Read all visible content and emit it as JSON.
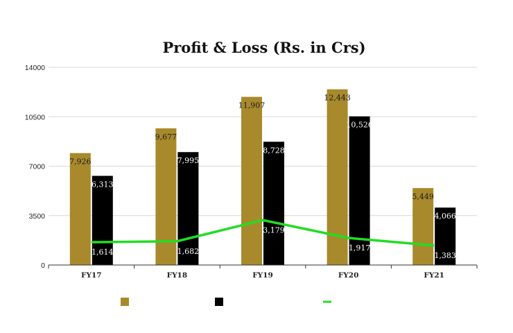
{
  "chart_data": {
    "type": "bar",
    "title": "Profit & Loss (Rs. in Crs)",
    "xlabel": "",
    "ylabel": "",
    "categories": [
      "FY17",
      "FY18",
      "FY19",
      "FY20",
      "FY21"
    ],
    "ylim": [
      0,
      14000
    ],
    "yticks": [
      "0",
      "3500",
      "7000",
      "10500",
      "14000"
    ],
    "ytick_values": [
      0,
      3500,
      7000,
      10500,
      14000
    ],
    "grid": true,
    "legend_position": "bottom",
    "series": [
      {
        "type": "bar",
        "color": "#a88a2c",
        "label_color": "#1a1a1a",
        "values": [
          7926,
          9677,
          11907,
          12443,
          5449
        ],
        "labels": [
          "7,926",
          "9,677",
          "11,907",
          "12,443",
          "5,449"
        ]
      },
      {
        "type": "bar",
        "color": "#000000",
        "label_color": "#ffffff",
        "values": [
          6313,
          7995,
          8728,
          10526,
          4066
        ],
        "labels": [
          "6,313",
          "7,995",
          "8,728",
          "10,526",
          "4,066"
        ]
      },
      {
        "type": "line",
        "color": "#22dd22",
        "label_color": "#ffffff",
        "values": [
          1614,
          1682,
          3179,
          1917,
          1383
        ],
        "labels": [
          "1,614",
          "1,682",
          "3,179",
          "1,917",
          "1,383"
        ]
      }
    ]
  }
}
